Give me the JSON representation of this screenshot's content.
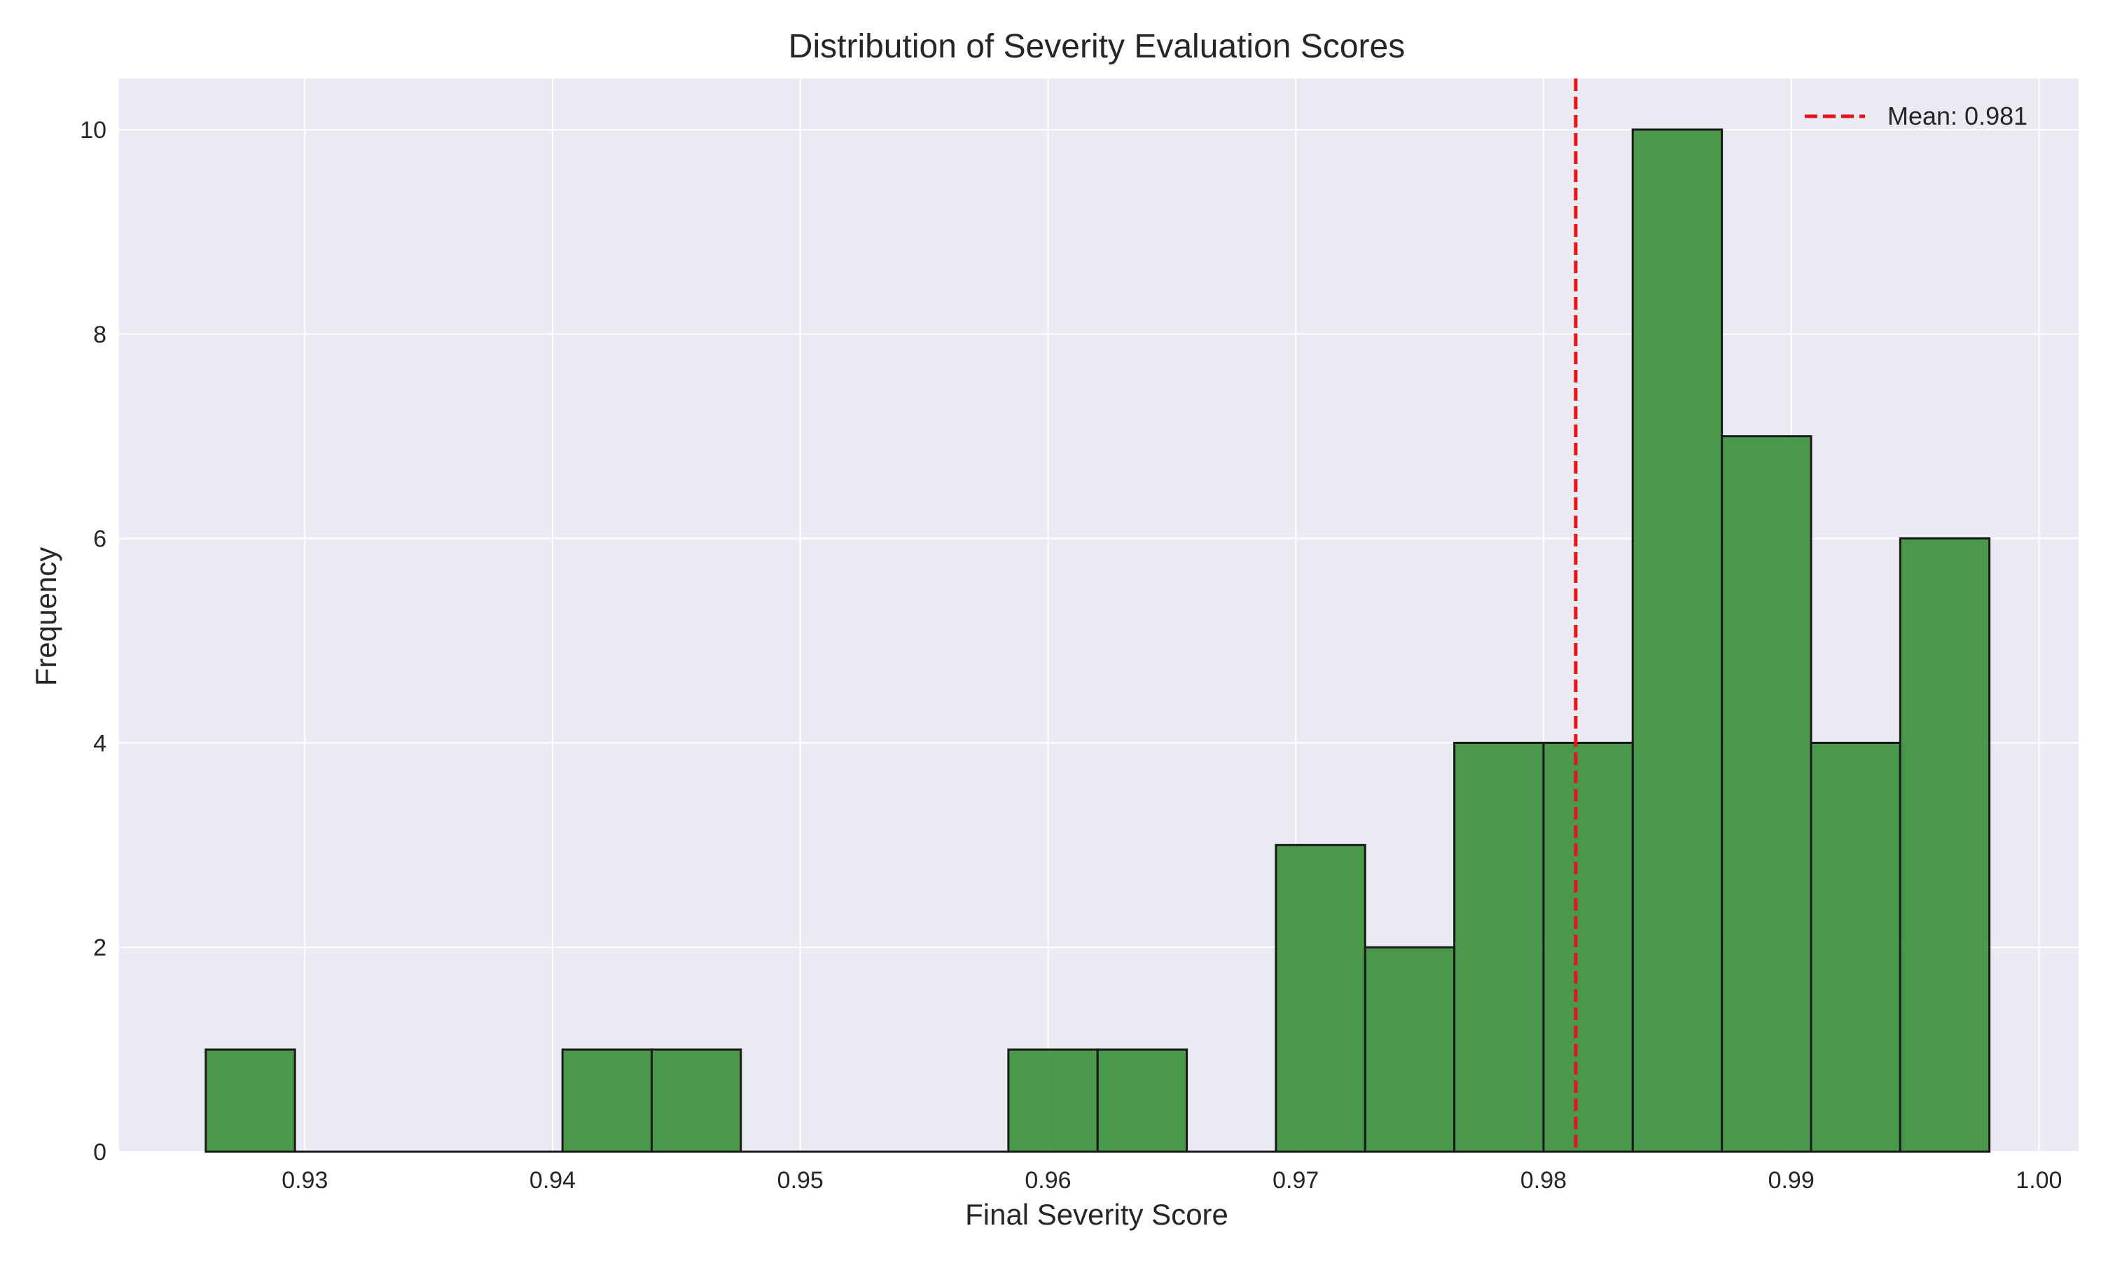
{
  "chart_data": {
    "type": "bar",
    "title": "Distribution of Severity Evaluation Scores",
    "xlabel": "Final Severity Score",
    "ylabel": "Frequency",
    "xlim": [
      0.9225,
      1.0016
    ],
    "ylim": [
      0,
      10.5
    ],
    "x_ticks": [
      0.93,
      0.94,
      0.95,
      0.96,
      0.97,
      0.98,
      0.99,
      1.0
    ],
    "x_tick_labels": [
      "0.93",
      "0.94",
      "0.95",
      "0.96",
      "0.97",
      "0.98",
      "0.99",
      "1.00"
    ],
    "y_ticks": [
      0,
      2,
      4,
      6,
      8,
      10
    ],
    "y_tick_labels": [
      "0",
      "2",
      "4",
      "6",
      "8",
      "10"
    ],
    "grid": true,
    "legend_position": "top-right",
    "bins": [
      {
        "start": 0.926,
        "end": 0.9296,
        "count": 1
      },
      {
        "start": 0.9296,
        "end": 0.9332,
        "count": 0
      },
      {
        "start": 0.9332,
        "end": 0.9368,
        "count": 0
      },
      {
        "start": 0.9368,
        "end": 0.9404,
        "count": 0
      },
      {
        "start": 0.9404,
        "end": 0.944,
        "count": 1
      },
      {
        "start": 0.944,
        "end": 0.9476,
        "count": 1
      },
      {
        "start": 0.9476,
        "end": 0.9512,
        "count": 0
      },
      {
        "start": 0.9512,
        "end": 0.9548,
        "count": 0
      },
      {
        "start": 0.9548,
        "end": 0.9584,
        "count": 0
      },
      {
        "start": 0.9584,
        "end": 0.962,
        "count": 1
      },
      {
        "start": 0.962,
        "end": 0.9656,
        "count": 1
      },
      {
        "start": 0.9656,
        "end": 0.9692,
        "count": 0
      },
      {
        "start": 0.9692,
        "end": 0.9728,
        "count": 3
      },
      {
        "start": 0.9728,
        "end": 0.9764,
        "count": 2
      },
      {
        "start": 0.9764,
        "end": 0.98,
        "count": 4
      },
      {
        "start": 0.98,
        "end": 0.9836,
        "count": 4
      },
      {
        "start": 0.9836,
        "end": 0.9872,
        "count": 10
      },
      {
        "start": 0.9872,
        "end": 0.9908,
        "count": 7
      },
      {
        "start": 0.9908,
        "end": 0.9944,
        "count": 4
      },
      {
        "start": 0.9944,
        "end": 0.998,
        "count": 6
      }
    ],
    "mean": 0.9813,
    "mean_label": "Mean: 0.981",
    "colors": {
      "bar_fill": "#2e8b2e",
      "bar_edge": "#1a1a1a",
      "mean_line": "#e8141b",
      "plot_background": "#eaeaf2",
      "grid": "#ffffff"
    }
  }
}
